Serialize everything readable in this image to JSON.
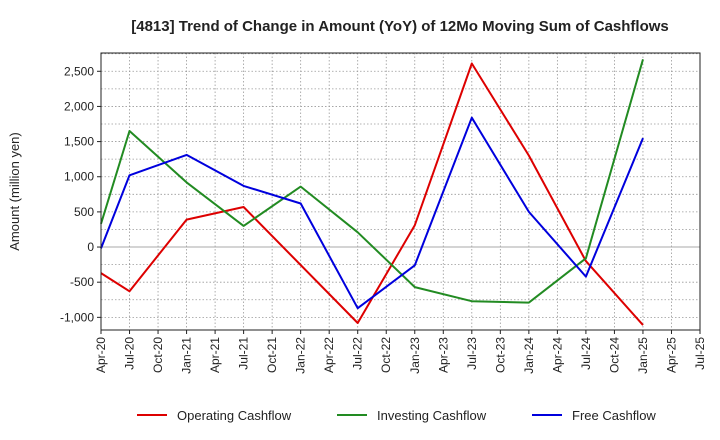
{
  "chart_data": {
    "type": "line",
    "title": "[4813]  Trend of Change in Amount (YoY) of 12Mo Moving Sum of Cashflows",
    "xlabel": "",
    "ylabel": "Amount (million yen)",
    "ylim": [
      -1180,
      2760
    ],
    "yticks": [
      -1000,
      -500,
      0,
      500,
      1000,
      1500,
      2000,
      2500
    ],
    "ytick_labels": [
      "-1,000",
      "-500",
      "0",
      "500",
      "1,000",
      "1,500",
      "2,000",
      "2,500"
    ],
    "categories": [
      "Apr-20",
      "Jul-20",
      "Oct-20",
      "Jan-21",
      "Apr-21",
      "Jul-21",
      "Oct-21",
      "Jan-22",
      "Apr-22",
      "Jul-22",
      "Oct-22",
      "Jan-23",
      "Apr-23",
      "Jul-23",
      "Oct-23",
      "Jan-24",
      "Apr-24",
      "Jul-24",
      "Oct-24",
      "Jan-25",
      "Apr-25",
      "Jul-25"
    ],
    "grid": true,
    "legend_position": "bottom",
    "series": [
      {
        "name": "Operating Cashflow",
        "color": "#dd0000",
        "values": [
          -370,
          -630,
          null,
          390,
          null,
          570,
          null,
          null,
          null,
          -1080,
          null,
          310,
          null,
          2610,
          null,
          1300,
          null,
          -200,
          null,
          -1110,
          null,
          null
        ]
      },
      {
        "name": "Investing Cashflow",
        "color": "#228b22",
        "values": [
          330,
          1650,
          null,
          920,
          null,
          300,
          null,
          860,
          null,
          210,
          null,
          -570,
          null,
          -770,
          null,
          -790,
          null,
          -160,
          null,
          2670,
          null,
          null
        ]
      },
      {
        "name": "Free Cashflow",
        "color": "#0000dd",
        "values": [
          -20,
          1020,
          null,
          1310,
          null,
          870,
          null,
          620,
          null,
          -870,
          null,
          -260,
          null,
          1840,
          null,
          500,
          null,
          -420,
          null,
          1550,
          null,
          null
        ]
      }
    ]
  }
}
